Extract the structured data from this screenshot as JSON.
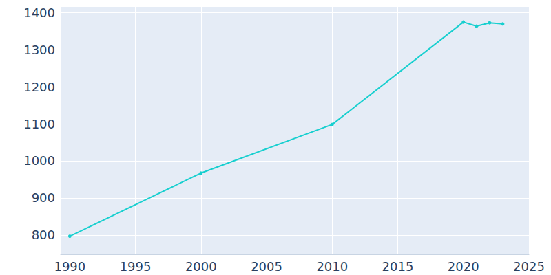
{
  "chart_data": {
    "type": "line",
    "x": [
      1990,
      2000,
      2010,
      2020,
      2021,
      2022,
      2023
    ],
    "values": [
      797,
      967,
      1098,
      1374,
      1363,
      1372,
      1369
    ],
    "color": "#17cfcf",
    "marker": "circle",
    "xlim": [
      1989.3,
      2025
    ],
    "xticks": [
      1990,
      1995,
      2000,
      2005,
      2010,
      2015,
      2020,
      2025
    ],
    "ylim": [
      748,
      1415
    ],
    "yticks": [
      800,
      900,
      1000,
      1100,
      1200,
      1300,
      1400
    ],
    "grid": true
  }
}
